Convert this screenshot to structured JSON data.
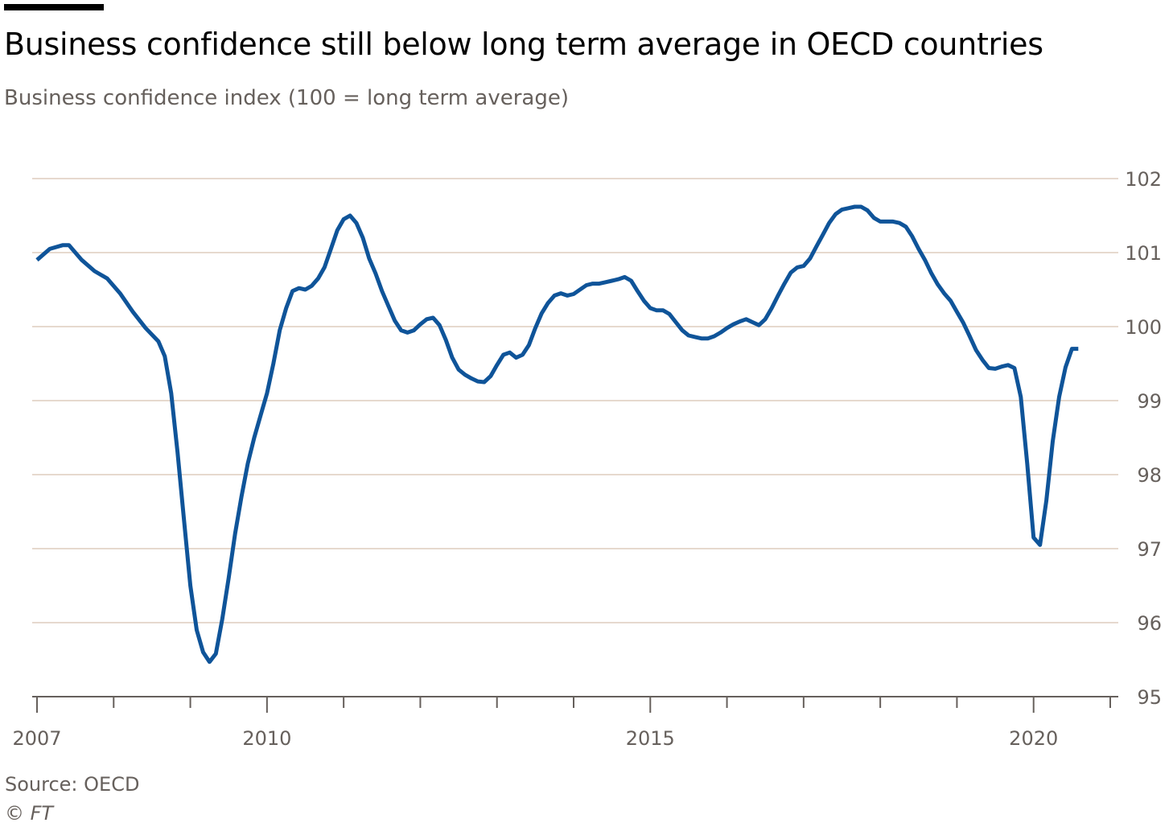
{
  "header": {
    "title": "Business confidence still below long term average in OECD countries",
    "subtitle": "Business confidence index (100 = long term average)"
  },
  "footer": {
    "source": "Source: OECD",
    "copyright": "© FT"
  },
  "colors": {
    "line": "#0f5499",
    "grid": "#e6d9ce",
    "axis": "#66605c",
    "text_muted": "#66605c",
    "title": "#000000"
  },
  "chart_data": {
    "type": "line",
    "title": "Business confidence still below long term average in OECD countries",
    "subtitle": "Business confidence index (100 = long term average)",
    "xlabel": "",
    "ylabel": "",
    "ylim": [
      95,
      102
    ],
    "xlim": [
      "2007-01",
      "2020-12"
    ],
    "y_ticks": [
      95,
      96,
      97,
      98,
      99,
      100,
      101,
      102
    ],
    "x_tick_labels": [
      "2007",
      "2010",
      "2015",
      "2020"
    ],
    "x_tick_years": [
      2007,
      2008,
      2009,
      2010,
      2011,
      2012,
      2013,
      2014,
      2015,
      2016,
      2017,
      2018,
      2019,
      2020,
      2021
    ],
    "y_axis_position": "right",
    "grid": true,
    "legend": "none",
    "source": "Source: OECD",
    "series": [
      {
        "points": [
          [
            "2007-01",
            100.9
          ],
          [
            "2007-03",
            101.05
          ],
          [
            "2007-05",
            101.1
          ],
          [
            "2007-06",
            101.1
          ],
          [
            "2007-08",
            100.9
          ],
          [
            "2007-10",
            100.75
          ],
          [
            "2007-12",
            100.65
          ],
          [
            "2008-02",
            100.45
          ],
          [
            "2008-04",
            100.2
          ],
          [
            "2008-06",
            99.98
          ],
          [
            "2008-08",
            99.8
          ],
          [
            "2008-09",
            99.6
          ],
          [
            "2008-10",
            99.1
          ],
          [
            "2008-11",
            98.3
          ],
          [
            "2008-12",
            97.4
          ],
          [
            "2009-01",
            96.5
          ],
          [
            "2009-02",
            95.9
          ],
          [
            "2009-03",
            95.6
          ],
          [
            "2009-04",
            95.47
          ],
          [
            "2009-05",
            95.58
          ],
          [
            "2009-06",
            96.05
          ],
          [
            "2009-07",
            96.6
          ],
          [
            "2009-08",
            97.2
          ],
          [
            "2009-09",
            97.7
          ],
          [
            "2009-10",
            98.15
          ],
          [
            "2009-11",
            98.5
          ],
          [
            "2009-12",
            98.8
          ],
          [
            "2010-01",
            99.1
          ],
          [
            "2010-02",
            99.5
          ],
          [
            "2010-03",
            99.95
          ],
          [
            "2010-04",
            100.25
          ],
          [
            "2010-05",
            100.48
          ],
          [
            "2010-06",
            100.52
          ],
          [
            "2010-07",
            100.5
          ],
          [
            "2010-08",
            100.55
          ],
          [
            "2010-09",
            100.65
          ],
          [
            "2010-10",
            100.8
          ],
          [
            "2010-11",
            101.05
          ],
          [
            "2010-12",
            101.3
          ],
          [
            "2011-01",
            101.45
          ],
          [
            "2011-02",
            101.5
          ],
          [
            "2011-03",
            101.4
          ],
          [
            "2011-04",
            101.2
          ],
          [
            "2011-05",
            100.92
          ],
          [
            "2011-06",
            100.72
          ],
          [
            "2011-07",
            100.48
          ],
          [
            "2011-08",
            100.28
          ],
          [
            "2011-09",
            100.08
          ],
          [
            "2011-10",
            99.95
          ],
          [
            "2011-11",
            99.92
          ],
          [
            "2011-12",
            99.95
          ],
          [
            "2012-01",
            100.03
          ],
          [
            "2012-02",
            100.1
          ],
          [
            "2012-03",
            100.12
          ],
          [
            "2012-04",
            100.02
          ],
          [
            "2012-05",
            99.82
          ],
          [
            "2012-06",
            99.58
          ],
          [
            "2012-07",
            99.42
          ],
          [
            "2012-08",
            99.35
          ],
          [
            "2012-09",
            99.3
          ],
          [
            "2012-10",
            99.26
          ],
          [
            "2012-11",
            99.25
          ],
          [
            "2012-12",
            99.33
          ],
          [
            "2013-01",
            99.48
          ],
          [
            "2013-02",
            99.62
          ],
          [
            "2013-03",
            99.65
          ],
          [
            "2013-04",
            99.58
          ],
          [
            "2013-05",
            99.62
          ],
          [
            "2013-06",
            99.75
          ],
          [
            "2013-07",
            99.98
          ],
          [
            "2013-08",
            100.18
          ],
          [
            "2013-09",
            100.32
          ],
          [
            "2013-10",
            100.42
          ],
          [
            "2013-11",
            100.45
          ],
          [
            "2013-12",
            100.42
          ],
          [
            "2014-01",
            100.44
          ],
          [
            "2014-02",
            100.5
          ],
          [
            "2014-03",
            100.56
          ],
          [
            "2014-04",
            100.58
          ],
          [
            "2014-05",
            100.58
          ],
          [
            "2014-06",
            100.6
          ],
          [
            "2014-07",
            100.62
          ],
          [
            "2014-08",
            100.64
          ],
          [
            "2014-09",
            100.67
          ],
          [
            "2014-10",
            100.62
          ],
          [
            "2014-11",
            100.48
          ],
          [
            "2014-12",
            100.35
          ],
          [
            "2015-01",
            100.25
          ],
          [
            "2015-02",
            100.22
          ],
          [
            "2015-03",
            100.22
          ],
          [
            "2015-04",
            100.17
          ],
          [
            "2015-05",
            100.06
          ],
          [
            "2015-06",
            99.95
          ],
          [
            "2015-07",
            99.88
          ],
          [
            "2015-08",
            99.86
          ],
          [
            "2015-09",
            99.84
          ],
          [
            "2015-10",
            99.84
          ],
          [
            "2015-11",
            99.87
          ],
          [
            "2015-12",
            99.92
          ],
          [
            "2016-01",
            99.98
          ],
          [
            "2016-02",
            100.03
          ],
          [
            "2016-03",
            100.07
          ],
          [
            "2016-04",
            100.1
          ],
          [
            "2016-05",
            100.06
          ],
          [
            "2016-06",
            100.02
          ],
          [
            "2016-07",
            100.1
          ],
          [
            "2016-08",
            100.25
          ],
          [
            "2016-09",
            100.42
          ],
          [
            "2016-10",
            100.58
          ],
          [
            "2016-11",
            100.73
          ],
          [
            "2016-12",
            100.8
          ],
          [
            "2017-01",
            100.82
          ],
          [
            "2017-02",
            100.92
          ],
          [
            "2017-03",
            101.08
          ],
          [
            "2017-04",
            101.24
          ],
          [
            "2017-05",
            101.4
          ],
          [
            "2017-06",
            101.52
          ],
          [
            "2017-07",
            101.58
          ],
          [
            "2017-08",
            101.6
          ],
          [
            "2017-09",
            101.62
          ],
          [
            "2017-10",
            101.62
          ],
          [
            "2017-11",
            101.57
          ],
          [
            "2017-12",
            101.47
          ],
          [
            "2018-01",
            101.42
          ],
          [
            "2018-02",
            101.42
          ],
          [
            "2018-03",
            101.42
          ],
          [
            "2018-04",
            101.4
          ],
          [
            "2018-05",
            101.35
          ],
          [
            "2018-06",
            101.22
          ],
          [
            "2018-07",
            101.05
          ],
          [
            "2018-08",
            100.9
          ],
          [
            "2018-09",
            100.72
          ],
          [
            "2018-10",
            100.57
          ],
          [
            "2018-11",
            100.45
          ],
          [
            "2018-12",
            100.35
          ],
          [
            "2019-01",
            100.2
          ],
          [
            "2019-02",
            100.05
          ],
          [
            "2019-03",
            99.87
          ],
          [
            "2019-04",
            99.68
          ],
          [
            "2019-05",
            99.55
          ],
          [
            "2019-06",
            99.44
          ],
          [
            "2019-07",
            99.43
          ],
          [
            "2019-08",
            99.46
          ],
          [
            "2019-09",
            99.48
          ],
          [
            "2019-10",
            99.44
          ],
          [
            "2019-11",
            99.05
          ],
          [
            "2019-12",
            98.15
          ],
          [
            "2020-01",
            97.15
          ],
          [
            "2020-02",
            97.05
          ],
          [
            "2020-03",
            97.65
          ],
          [
            "2020-04",
            98.45
          ],
          [
            "2020-05",
            99.05
          ],
          [
            "2020-06",
            99.45
          ],
          [
            "2020-07",
            99.7
          ],
          [
            "2020-08",
            99.7
          ]
        ]
      }
    ]
  }
}
